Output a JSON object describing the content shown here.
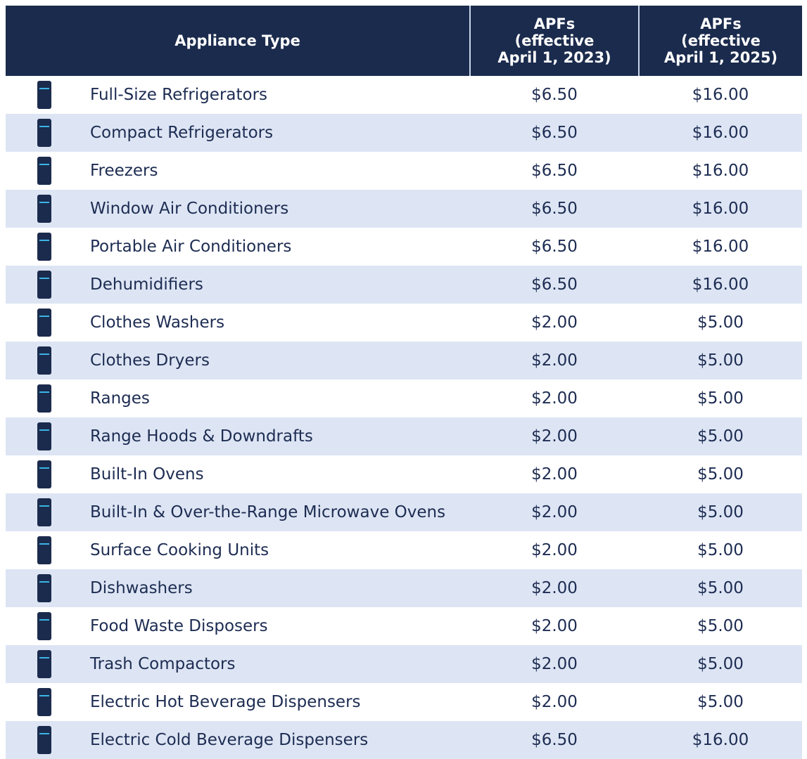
{
  "table": {
    "header": {
      "appliance_type": "Appliance Type",
      "col2": [
        "APFs",
        "(effective",
        "April 1, 2023)"
      ],
      "col3": [
        "APFs",
        "(effective",
        "April 1, 2025)"
      ]
    },
    "rows": [
      [
        "Full-Size Refrigerators",
        "$6.50",
        "$16.00"
      ],
      [
        "Compact Refrigerators",
        "$6.50",
        "$16.00"
      ],
      [
        "Freezers",
        "$6.50",
        "$16.00"
      ],
      [
        "Window Air Conditioners",
        "$6.50",
        "$16.00"
      ],
      [
        "Portable Air Conditioners",
        "$6.50",
        "$16.00"
      ],
      [
        "Dehumidifiers",
        "$6.50",
        "$16.00"
      ],
      [
        "Clothes Washers",
        "$2.00",
        "$5.00"
      ],
      [
        "Clothes Dryers",
        "$2.00",
        "$5.00"
      ],
      [
        "Ranges",
        "$2.00",
        "$5.00"
      ],
      [
        "Range Hoods & Downdrafts",
        "$2.00",
        "$5.00"
      ],
      [
        "Built-In Ovens",
        "$2.00",
        "$5.00"
      ],
      [
        "Built-In & Over-the-Range Microwave Ovens",
        "$2.00",
        "$5.00"
      ],
      [
        "Surface Cooking Units",
        "$2.00",
        "$5.00"
      ],
      [
        "Dishwashers",
        "$2.00",
        "$5.00"
      ],
      [
        "Food Waste Disposers",
        "$2.00",
        "$5.00"
      ],
      [
        "Trash Compactors",
        "$2.00",
        "$5.00"
      ],
      [
        "Electric Hot Beverage Dispensers",
        "$2.00",
        "$5.00"
      ],
      [
        "Electric Cold Beverage Dispensers",
        "$6.50",
        "$16.00"
      ]
    ]
  }
}
